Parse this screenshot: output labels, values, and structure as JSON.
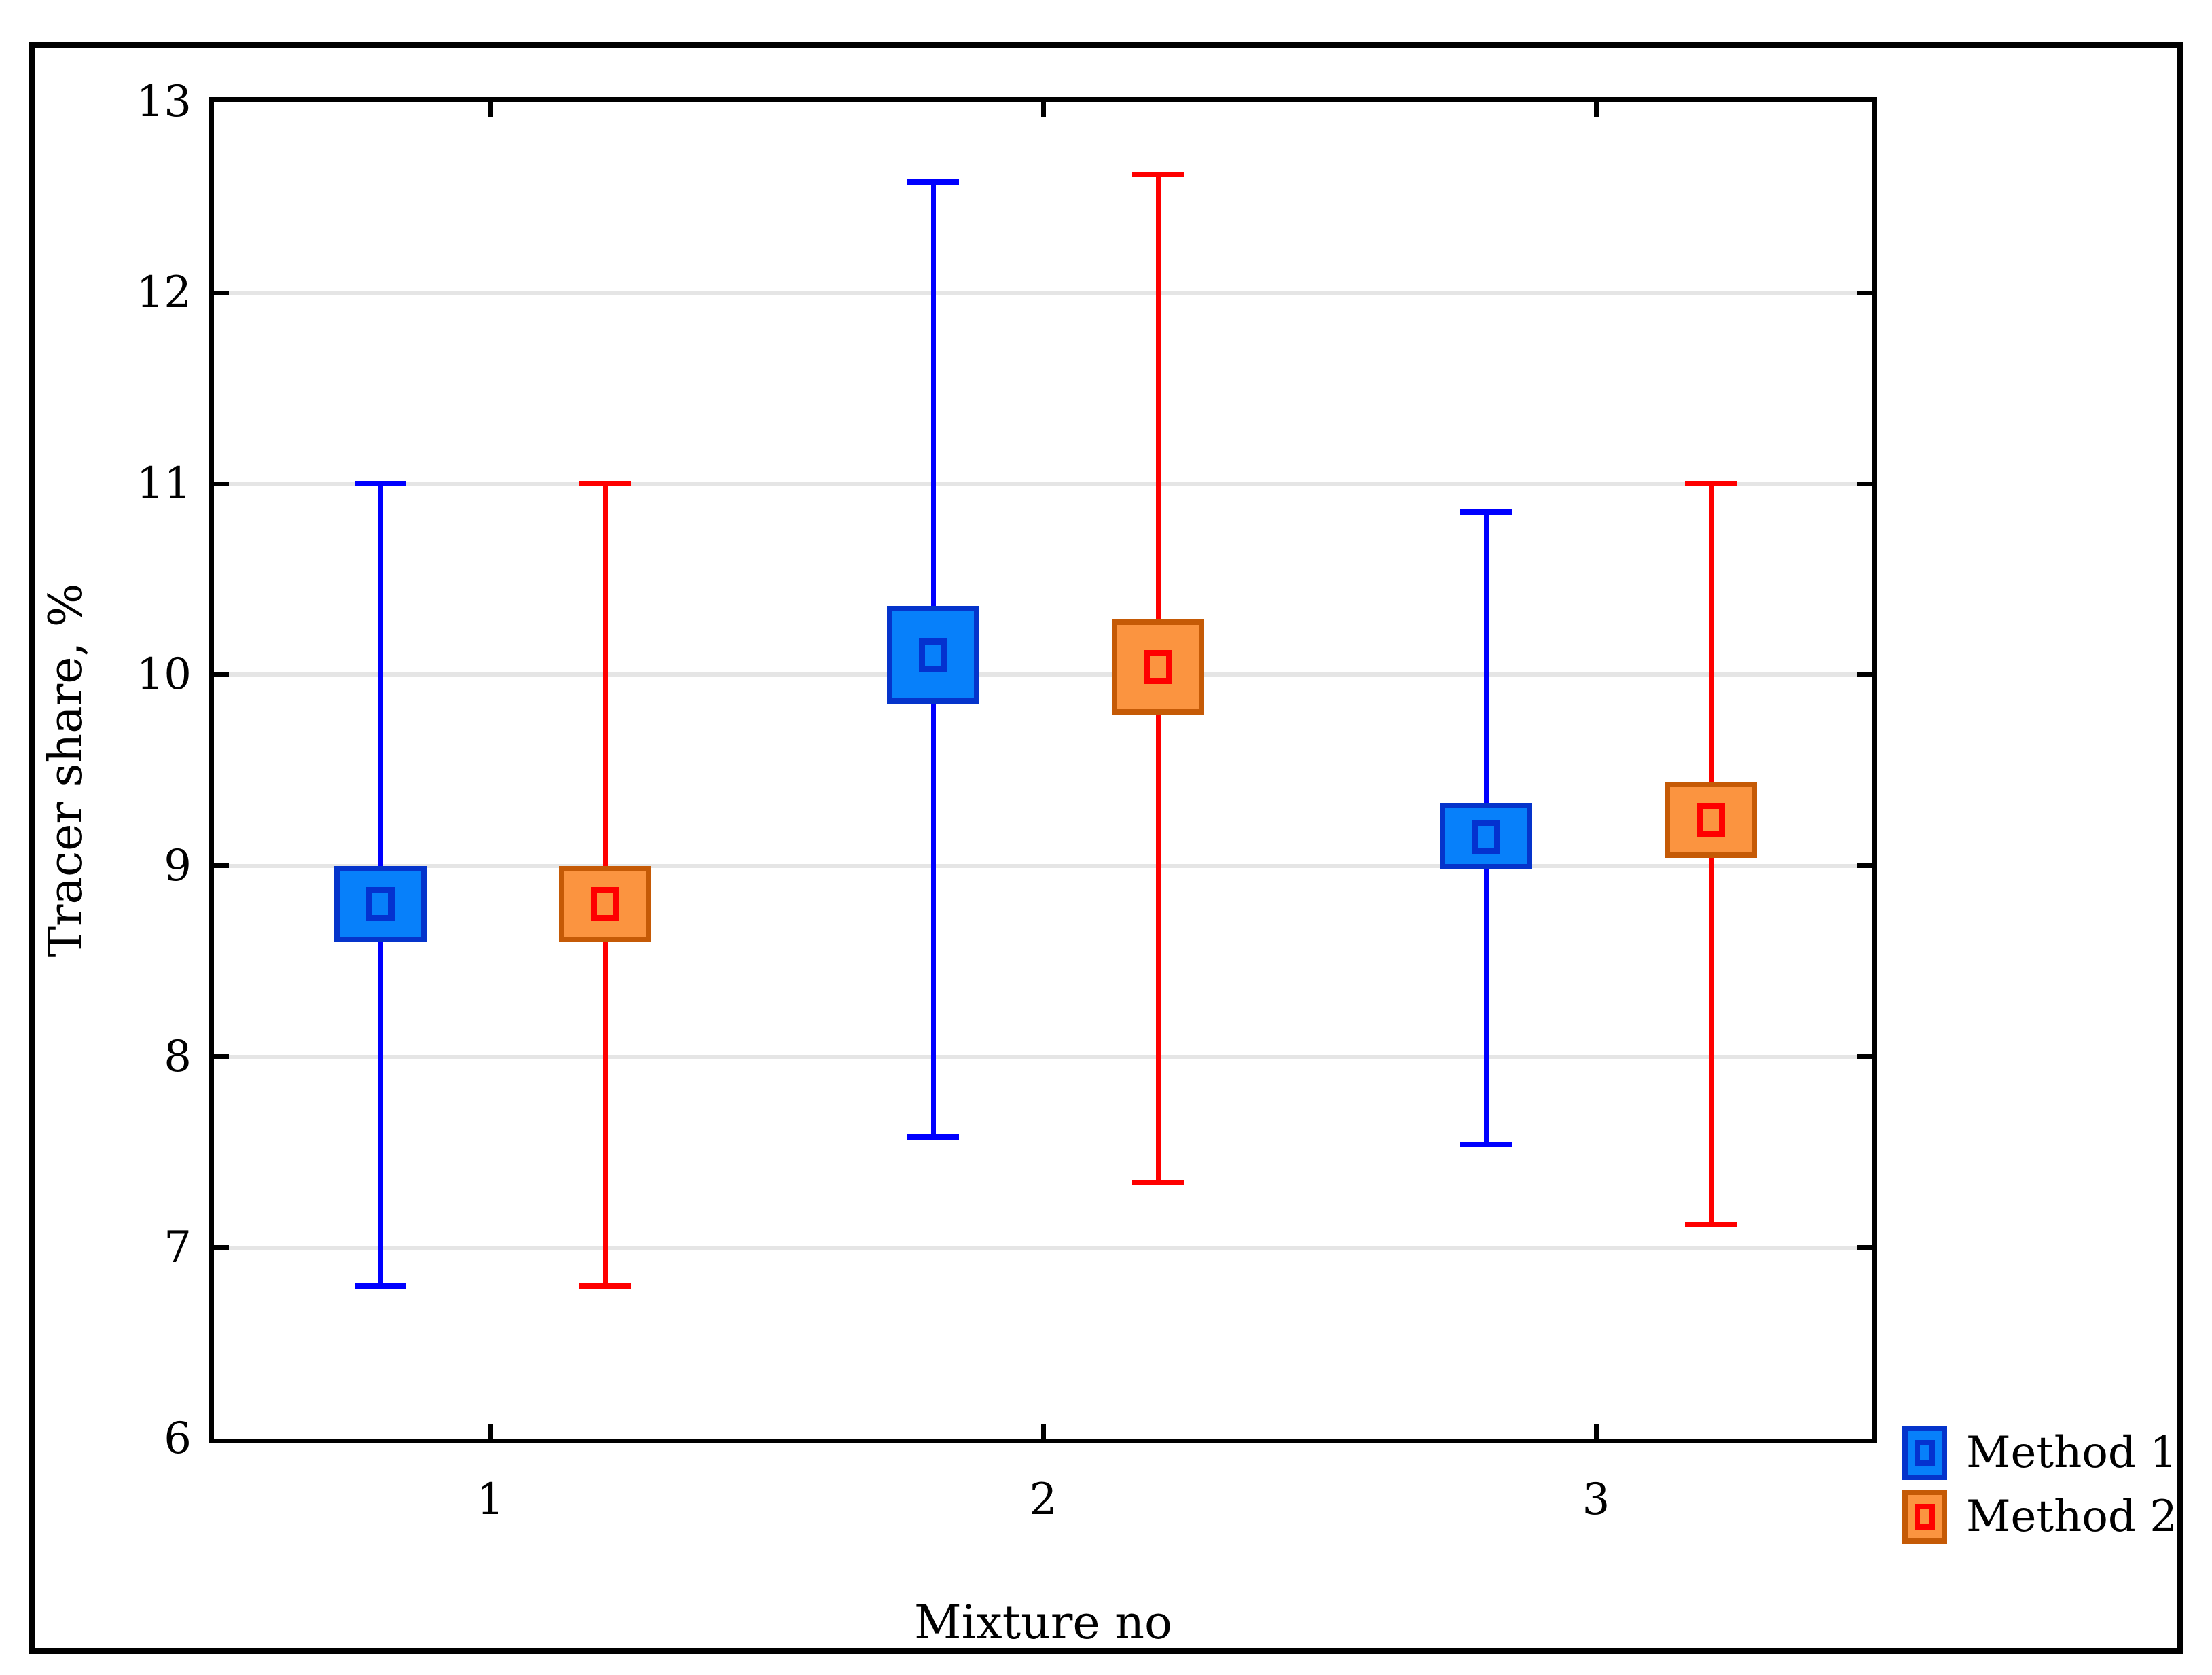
{
  "chart_data": {
    "type": "box",
    "title": "",
    "xlabel": "Mixture no",
    "ylabel": "Tracer share, %",
    "categories": [
      "1",
      "2",
      "3"
    ],
    "y_axis": {
      "min": 6,
      "max": 13,
      "tick_step": 1,
      "tick_labels": [
        "13",
        "12",
        "11",
        "10",
        "9",
        "8",
        "7",
        "6"
      ],
      "gridline_values": [
        7,
        8,
        9,
        10,
        11,
        12
      ]
    },
    "grid": "horizontal-light-gray",
    "legend": {
      "position": "bottom-right-outside",
      "entries": [
        "Method 1",
        "Method 2"
      ]
    },
    "series": [
      {
        "name": "Method 1",
        "colors": {
          "fill": "#0780fa",
          "border": "#0534cb",
          "whisker": "#0000fe",
          "marker_outline": "#0432cf"
        },
        "points": [
          {
            "category": "1",
            "whisker_low": 6.8,
            "box_low": 8.6,
            "center": 8.8,
            "box_high": 9.0,
            "whisker_high": 11.0
          },
          {
            "category": "2",
            "whisker_low": 7.58,
            "box_low": 9.85,
            "center": 10.1,
            "box_high": 10.36,
            "whisker_high": 12.58
          },
          {
            "category": "3",
            "whisker_low": 7.54,
            "box_low": 8.98,
            "center": 9.15,
            "box_high": 9.33,
            "whisker_high": 10.85
          }
        ]
      },
      {
        "name": "Method 2",
        "colors": {
          "fill": "#fb9440",
          "border": "#c55a06",
          "whisker": "#fe0000",
          "marker_outline": "#fe0000"
        },
        "points": [
          {
            "category": "1",
            "whisker_low": 6.8,
            "box_low": 8.6,
            "center": 8.8,
            "box_high": 9.0,
            "whisker_high": 11.0
          },
          {
            "category": "2",
            "whisker_low": 7.34,
            "box_low": 9.79,
            "center": 10.04,
            "box_high": 10.29,
            "whisker_high": 12.62
          },
          {
            "category": "3",
            "whisker_low": 7.12,
            "box_low": 9.04,
            "center": 9.24,
            "box_high": 9.44,
            "whisker_high": 11.0
          }
        ]
      }
    ],
    "style_colors": {
      "gridline": "#e5e5e5",
      "frame": "#000000",
      "text": "#000000",
      "background": "#ffffff"
    }
  }
}
